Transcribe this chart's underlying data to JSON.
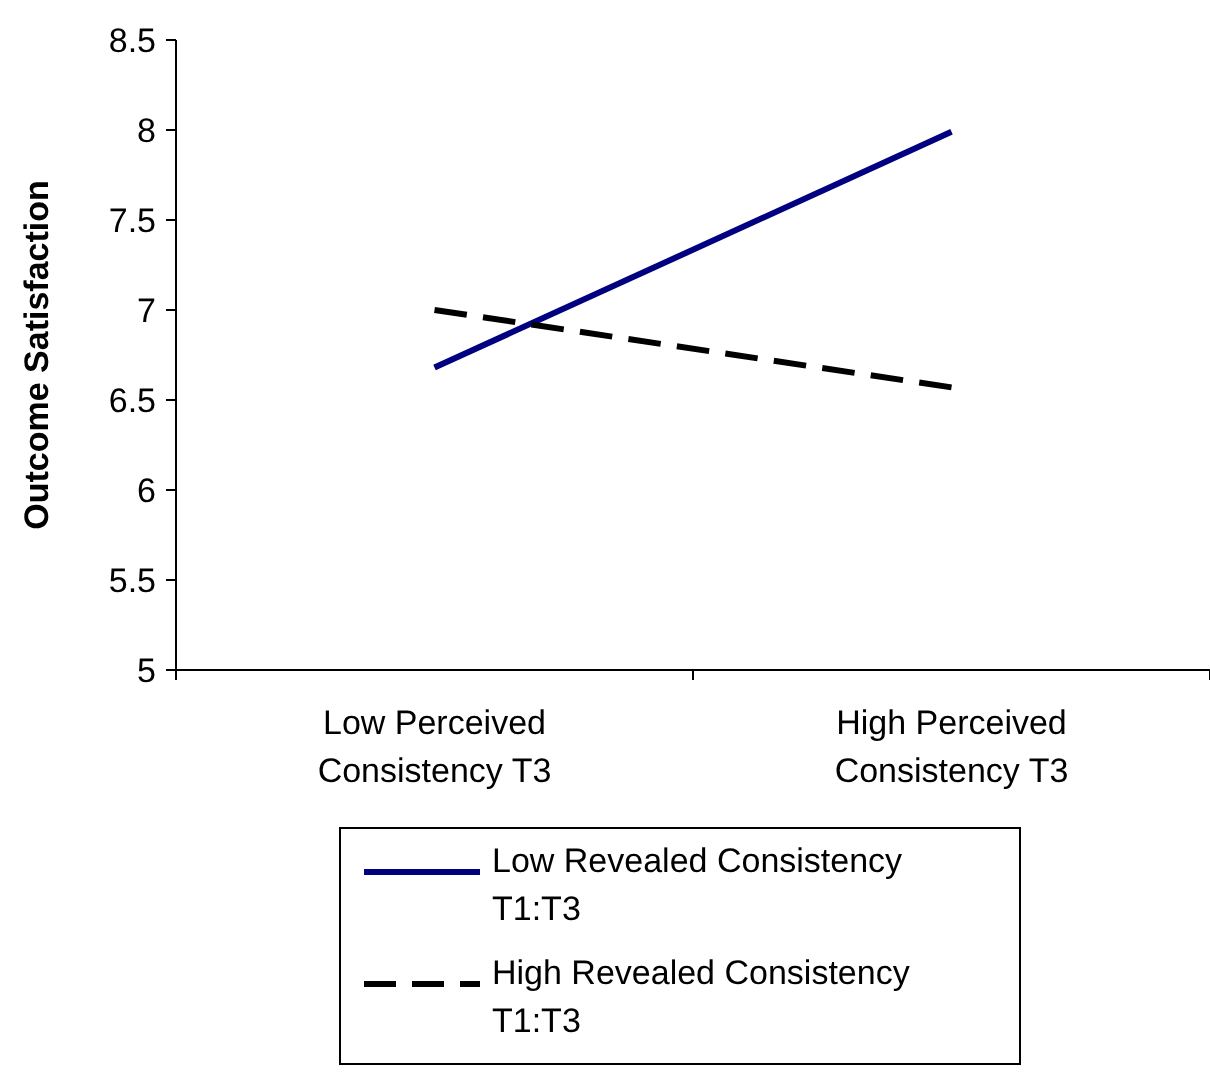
{
  "chart_data": {
    "type": "line",
    "ylabel": "Outcome Satisfaction",
    "categories": [
      "Low Perceived\nConsistency T3",
      "High Perceived\nConsistency T3"
    ],
    "series": [
      {
        "name": "Low Revealed Consistency\nT1:T3",
        "color": "#000080",
        "values": [
          6.68,
          7.99
        ],
        "line_style": "solid"
      },
      {
        "name": "High Revealed Consistency\nT1:T3",
        "color": "#000000",
        "values": [
          7.0,
          6.57
        ],
        "line_style": "dashed"
      }
    ],
    "ylim": [
      5,
      8.5
    ],
    "yticks": [
      5,
      5.5,
      6,
      6.5,
      7,
      7.5,
      8,
      8.5
    ],
    "grid": false,
    "legend": "bottom",
    "marker": "none"
  }
}
